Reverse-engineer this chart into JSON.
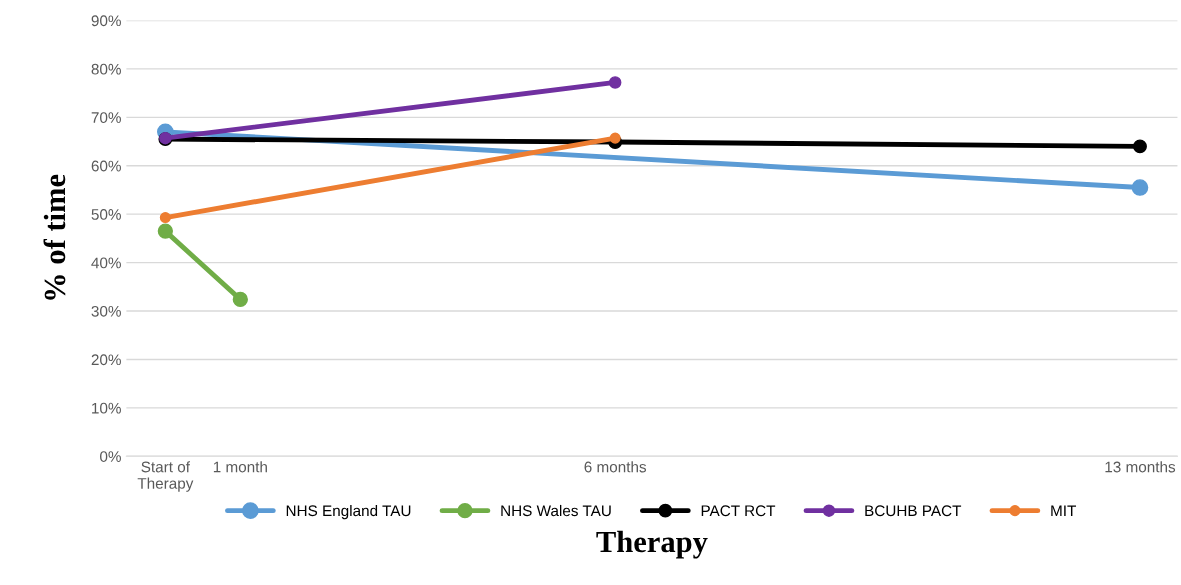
{
  "chart_data": {
    "type": "line",
    "xlabel": "Therapy",
    "ylabel": "% of time",
    "xlim": [
      -0.52,
      13.5
    ],
    "xticks": [
      {
        "value": 0,
        "label": "Start of\nTherapy"
      },
      {
        "value": 1,
        "label": "1 month"
      },
      {
        "value": 6,
        "label": "6 months"
      },
      {
        "value": 13,
        "label": "13 months"
      }
    ],
    "ylim": [
      0,
      90
    ],
    "yticks": [
      {
        "value": 0,
        "label": "0%"
      },
      {
        "value": 10,
        "label": "10%"
      },
      {
        "value": 20,
        "label": "20%"
      },
      {
        "value": 30,
        "label": "30%"
      },
      {
        "value": 40,
        "label": "40%"
      },
      {
        "value": 50,
        "label": "50%"
      },
      {
        "value": 60,
        "label": "60%"
      },
      {
        "value": 70,
        "label": "70%"
      },
      {
        "value": 80,
        "label": "80%"
      },
      {
        "value": 90,
        "label": "90%"
      }
    ],
    "grid": "y",
    "legend": "bottom",
    "marker": "circle",
    "line_style": "solid",
    "series": [
      {
        "name": "NHS England TAU",
        "color": "#5b9bd5",
        "x": [
          0,
          13
        ],
        "values": [
          67,
          55.5
        ]
      },
      {
        "name": "NHS Wales TAU",
        "color": "#70ad47",
        "x": [
          0,
          1
        ],
        "values": [
          46.5,
          32.4
        ]
      },
      {
        "name": "PACT RCT",
        "color": "#000000",
        "x": [
          0,
          6,
          13
        ],
        "values": [
          65.5,
          64.9,
          64
        ]
      },
      {
        "name": "BCUHB PACT",
        "color": "#7030a0",
        "x": [
          0,
          6
        ],
        "values": [
          65.7,
          77.2
        ]
      },
      {
        "name": "MIT",
        "color": "#ed7d31",
        "x": [
          0,
          6
        ],
        "values": [
          49.3,
          65.7
        ]
      }
    ]
  }
}
